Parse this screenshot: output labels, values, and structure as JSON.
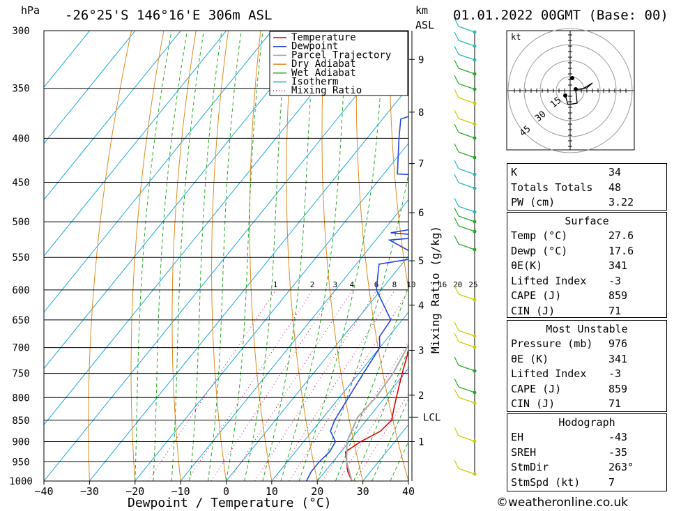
{
  "header": {
    "location": "-26°25'S 146°16'E 306m ASL",
    "datetime": "01.01.2022 00GMT (Base: 00)",
    "p_unit": "hPa",
    "km_unit_1": "km",
    "km_unit_2": "ASL"
  },
  "chart_data": {
    "type": "line",
    "title": "-26°25'S 146°16'E 306m ASL",
    "xlabel": "Dewpoint / Temperature (°C)",
    "ylabel": "hPa",
    "mixing_axis_label": "Mixing Ratio (g/kg)",
    "xlim": [
      -40,
      40
    ],
    "ylim": [
      1000,
      300
    ],
    "x_ticks": [
      -40,
      -30,
      -20,
      -10,
      0,
      10,
      20,
      30,
      40
    ],
    "pressure_levels": [
      300,
      350,
      400,
      450,
      500,
      550,
      600,
      650,
      700,
      750,
      800,
      850,
      900,
      950,
      1000
    ],
    "km_ticks": [
      {
        "km": 1,
        "p": 900
      },
      {
        "km": 2,
        "p": 795
      },
      {
        "km": 3,
        "p": 705
      },
      {
        "km": 4,
        "p": 625
      },
      {
        "km": 5,
        "p": 555
      },
      {
        "km": 6,
        "p": 488
      },
      {
        "km": 7,
        "p": 428
      },
      {
        "km": 8,
        "p": 373
      },
      {
        "km": 9,
        "p": 324
      }
    ],
    "lcl": {
      "label": "LCL",
      "p": 843
    },
    "mixing_ratios": [
      1,
      2,
      3,
      4,
      6,
      8,
      10,
      16,
      20,
      25
    ],
    "legend": [
      "Temperature",
      "Dewpoint",
      "Parcel Trajectory",
      "Dry Adiabat",
      "Wet Adiabat",
      "Isotherm",
      "Mixing Ratio"
    ],
    "grid": true,
    "series": [
      {
        "name": "Temperature",
        "color": "#e00000",
        "points": [
          [
            1000,
            27.6
          ],
          [
            975,
            25
          ],
          [
            950,
            23
          ],
          [
            925,
            21
          ],
          [
            900,
            22.5
          ],
          [
            875,
            25
          ],
          [
            850,
            25.5
          ],
          [
            825,
            24
          ],
          [
            800,
            22.5
          ],
          [
            750,
            19.5
          ],
          [
            700,
            16.5
          ],
          [
            650,
            13
          ],
          [
            600,
            9.5
          ],
          [
            550,
            6.5
          ],
          [
            500,
            2
          ],
          [
            470,
            -1
          ],
          [
            450,
            -3.5
          ],
          [
            440,
            -3
          ],
          [
            400,
            -8.5
          ],
          [
            350,
            -16
          ],
          [
            320,
            -21
          ],
          [
            300,
            -26
          ]
        ]
      },
      {
        "name": "Dewpoint",
        "color": "#2244dd",
        "points": [
          [
            1000,
            17.6
          ],
          [
            975,
            17
          ],
          [
            950,
            17
          ],
          [
            925,
            17.5
          ],
          [
            900,
            17
          ],
          [
            875,
            14
          ],
          [
            850,
            13
          ],
          [
            800,
            12
          ],
          [
            750,
            11
          ],
          [
            700,
            10
          ],
          [
            680,
            8
          ],
          [
            650,
            7.5
          ],
          [
            600,
            -1
          ],
          [
            560,
            -5
          ],
          [
            550,
            3
          ],
          [
            525,
            -7
          ],
          [
            520,
            2
          ],
          [
            515,
            -8
          ],
          [
            505,
            0
          ],
          [
            490,
            1
          ],
          [
            475,
            -6
          ],
          [
            465,
            0
          ],
          [
            455,
            -4
          ],
          [
            445,
            1
          ],
          [
            440,
            -17
          ],
          [
            400,
            -23
          ],
          [
            380,
            -26
          ],
          [
            365,
            -19
          ],
          [
            350,
            -11
          ],
          [
            345,
            -13
          ],
          [
            330,
            -14
          ],
          [
            300,
            -10
          ]
        ]
      },
      {
        "name": "Parcel Trajectory",
        "color": "#a8a8a8",
        "points": [
          [
            1000,
            27.6
          ],
          [
            950,
            23
          ],
          [
            900,
            19.5
          ],
          [
            843,
            17.5
          ],
          [
            800,
            18
          ],
          [
            750,
            17.5
          ],
          [
            700,
            16
          ],
          [
            650,
            14
          ],
          [
            600,
            11.5
          ],
          [
            550,
            8.5
          ],
          [
            500,
            5
          ],
          [
            450,
            1
          ],
          [
            400,
            -4.5
          ],
          [
            350,
            -12
          ],
          [
            320,
            -17
          ],
          [
            300,
            -20.5
          ]
        ]
      }
    ]
  },
  "hodograph": {
    "unit": "kt",
    "rings": [
      "15",
      "30",
      "45"
    ]
  },
  "indices": [
    {
      "label": "K",
      "value": "34"
    },
    {
      "label": "Totals Totals",
      "value": "48"
    },
    {
      "label": "PW (cm)",
      "value": "3.22"
    }
  ],
  "surface": {
    "title": "Surface",
    "rows": [
      {
        "label": "Temp (°C)",
        "value": "27.6"
      },
      {
        "label": "Dewp (°C)",
        "value": "17.6"
      },
      {
        "label": "θE(K)",
        "value": "341"
      },
      {
        "label": "Lifted Index",
        "value": "-3"
      },
      {
        "label": "CAPE (J)",
        "value": "859"
      },
      {
        "label": "CIN (J)",
        "value": "71"
      }
    ]
  },
  "most_unstable": {
    "title": "Most Unstable",
    "rows": [
      {
        "label": "Pressure (mb)",
        "value": "976"
      },
      {
        "label": "θE (K)",
        "value": "341"
      },
      {
        "label": "Lifted Index",
        "value": "-3"
      },
      {
        "label": "CAPE (J)",
        "value": "859"
      },
      {
        "label": "CIN (J)",
        "value": "71"
      }
    ]
  },
  "hodograph_table": {
    "title": "Hodograph",
    "rows": [
      {
        "label": "EH",
        "value": "-43"
      },
      {
        "label": "SREH",
        "value": "-35"
      },
      {
        "label": "StmDir",
        "value": "263°"
      },
      {
        "label": "StmSpd (kt)",
        "value": "7"
      }
    ]
  },
  "credit": "©weatheronline.co.uk"
}
